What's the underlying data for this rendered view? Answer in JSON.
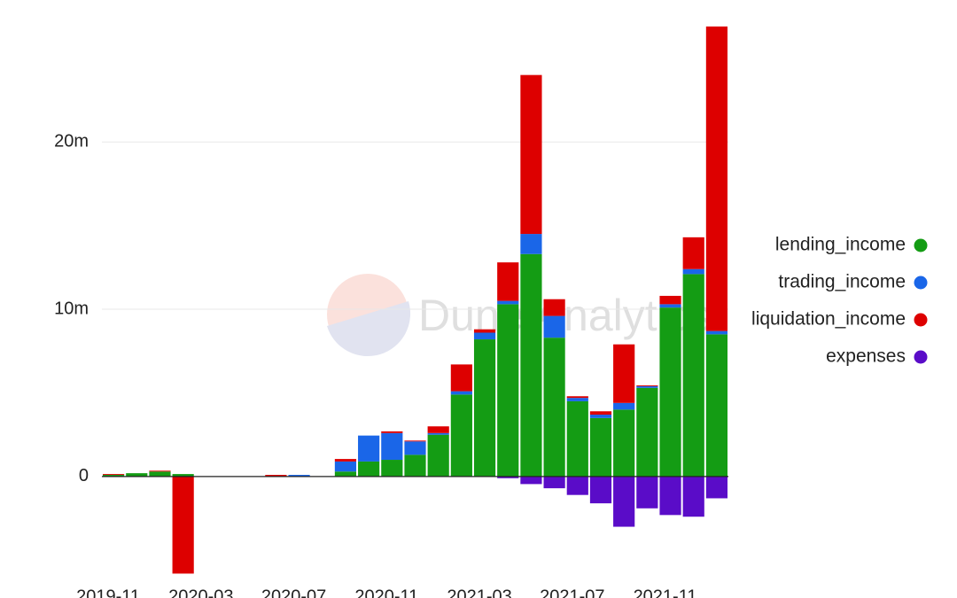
{
  "chart_data": {
    "type": "bar",
    "stacked": true,
    "watermark": "Dune Analytics",
    "categories": [
      "2019-11",
      null,
      null,
      null,
      "2020-03",
      null,
      null,
      null,
      "2020-07",
      null,
      null,
      null,
      "2020-11",
      null,
      null,
      null,
      "2021-03",
      null,
      null,
      null,
      "2021-07",
      null,
      null,
      null,
      "2021-11",
      null,
      null
    ],
    "series": [
      {
        "name": "lending_income",
        "color": "#149c14",
        "values": [
          0.1,
          0.2,
          0.3,
          0.15,
          0,
          0,
          0,
          0,
          0,
          0,
          0.3,
          0.9,
          1.0,
          1.3,
          2.5,
          4.9,
          8.2,
          10.3,
          13.3,
          8.3,
          4.5,
          3.5,
          4.0,
          5.3,
          10.1,
          12.1,
          8.5
        ]
      },
      {
        "name": "trading_income",
        "color": "#1a66e8",
        "values": [
          0,
          0,
          0,
          0,
          0,
          0,
          0,
          0,
          0.1,
          0,
          0.6,
          1.55,
          1.6,
          0.8,
          0.1,
          0.2,
          0.4,
          0.2,
          1.2,
          1.3,
          0.2,
          0.2,
          0.4,
          0.1,
          0.2,
          0.3,
          0.2
        ]
      },
      {
        "name": "liquidation_income",
        "color": "#dd0000",
        "values": [
          0.05,
          0,
          0.05,
          -5.8,
          0,
          0,
          0,
          0.1,
          0,
          0,
          0.15,
          0,
          0.1,
          0.05,
          0.4,
          1.6,
          0.2,
          2.3,
          9.5,
          1.0,
          0.1,
          0.2,
          3.5,
          0.05,
          0.5,
          1.9,
          18.2
        ]
      },
      {
        "name": "expenses",
        "color": "#5a0cc8",
        "values": [
          0,
          0,
          0,
          0,
          0,
          0,
          0,
          0,
          0,
          0,
          0,
          0,
          0,
          0,
          0,
          0,
          0,
          -0.1,
          -0.45,
          -0.7,
          -1.1,
          -1.6,
          -3.0,
          -1.9,
          -2.3,
          -2.4,
          -1.3
        ]
      }
    ],
    "ylim": [
      -6.2,
      27
    ],
    "yticks": [
      {
        "value": 0,
        "label": "0"
      },
      {
        "value": 10,
        "label": "10m"
      },
      {
        "value": 20,
        "label": "20m"
      }
    ],
    "grid": true,
    "legend": "right"
  }
}
